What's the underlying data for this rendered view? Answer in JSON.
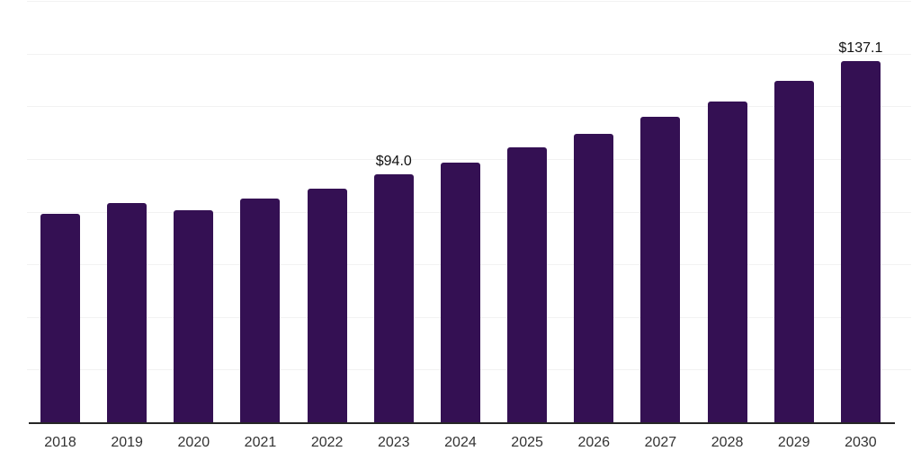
{
  "chart_data": {
    "type": "bar",
    "title": "",
    "xlabel": "",
    "ylabel": "",
    "categories": [
      "2018",
      "2019",
      "2020",
      "2021",
      "2022",
      "2023",
      "2024",
      "2025",
      "2026",
      "2027",
      "2028",
      "2029",
      "2030"
    ],
    "values": [
      79.1,
      83.4,
      80.4,
      84.9,
      88.8,
      94.0,
      98.6,
      104.5,
      109.6,
      116.0,
      121.8,
      129.6,
      137.1
    ],
    "bar_labels": [
      "",
      "",
      "",
      "",
      "",
      "$94.0",
      "",
      "",
      "",
      "",
      "",
      "",
      "$137.1"
    ],
    "ylim": [
      0,
      160
    ],
    "gridline_step": 20,
    "grid": true,
    "legend": "none",
    "colors": {
      "bar": "#341053",
      "gridline": "#f2f2f2",
      "axis_line": "#262626",
      "value_label": "#111111",
      "tick_label": "#333333",
      "background": "#ffffff"
    }
  }
}
